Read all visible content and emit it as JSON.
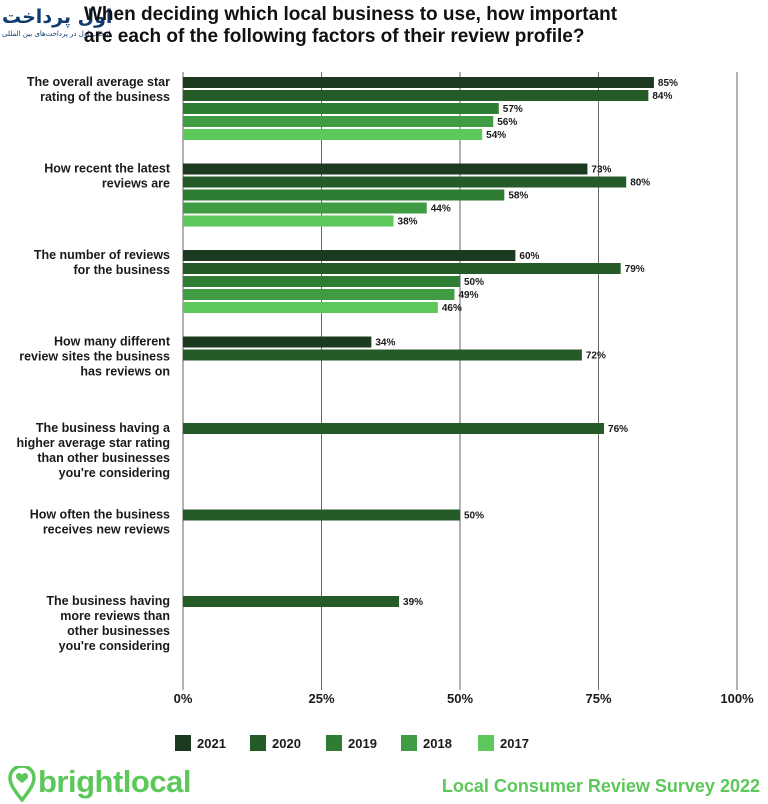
{
  "watermark": {
    "name": "اول پرداخت",
    "tagline": "انتخاب اول در پرداخت‌های بین المللی"
  },
  "title_lines": [
    "When deciding which local business to use, how important",
    "are each of the following factors of their review profile?"
  ],
  "colors": {
    "2021": "#1b3a1f",
    "2020": "#245b27",
    "2019": "#2f7d32",
    "2018": "#3f9c43",
    "2017": "#5cc85a",
    "grid": "#666666",
    "brand": "#5cc85a"
  },
  "footer": {
    "brand": "brightlocal",
    "survey": "Local Consumer Review Survey 2022",
    "logo_icon": "heart-location-pin-icon"
  },
  "chart_data": {
    "type": "bar",
    "orientation": "horizontal",
    "xlim": [
      0,
      100
    ],
    "xticks": [
      "0%",
      "25%",
      "50%",
      "75%",
      "100%"
    ],
    "grid": true,
    "legend_position": "bottom",
    "series_names": [
      "2021",
      "2020",
      "2019",
      "2018",
      "2017"
    ],
    "groups": [
      {
        "label_lines": [
          "The overall average star",
          "rating of the business"
        ],
        "bars": [
          {
            "series": "2021",
            "value": 85,
            "label": "85%"
          },
          {
            "series": "2020",
            "value": 84,
            "label": "84%"
          },
          {
            "series": "2019",
            "value": 57,
            "label": "57%"
          },
          {
            "series": "2018",
            "value": 56,
            "label": "56%"
          },
          {
            "series": "2017",
            "value": 54,
            "label": "54%"
          }
        ]
      },
      {
        "label_lines": [
          "How recent the latest",
          "reviews are"
        ],
        "bars": [
          {
            "series": "2021",
            "value": 73,
            "label": "73%"
          },
          {
            "series": "2020",
            "value": 80,
            "label": "80%"
          },
          {
            "series": "2019",
            "value": 58,
            "label": "58%"
          },
          {
            "series": "2018",
            "value": 44,
            "label": "44%"
          },
          {
            "series": "2017",
            "value": 38,
            "label": "38%"
          }
        ]
      },
      {
        "label_lines": [
          "The number of reviews",
          "for the business"
        ],
        "bars": [
          {
            "series": "2021",
            "value": 60,
            "label": "60%"
          },
          {
            "series": "2020",
            "value": 79,
            "label": "79%"
          },
          {
            "series": "2019",
            "value": 50,
            "label": "50%"
          },
          {
            "series": "2018",
            "value": 49,
            "label": "49%"
          },
          {
            "series": "2017",
            "value": 46,
            "label": "46%"
          }
        ]
      },
      {
        "label_lines": [
          "How many different",
          "review sites the business",
          "has reviews on"
        ],
        "bars": [
          {
            "series": "2021",
            "value": 34,
            "label": "34%"
          },
          {
            "series": "2020",
            "value": 72,
            "label": "72%"
          }
        ]
      },
      {
        "label_lines": [
          "The business having a",
          "higher average star rating",
          "than other businesses",
          "you're considering"
        ],
        "bars": [
          {
            "series": "2020",
            "value": 76,
            "label": "76%"
          }
        ]
      },
      {
        "label_lines": [
          "How often the business",
          "receives new reviews"
        ],
        "bars": [
          {
            "series": "2020",
            "value": 50,
            "label": "50%"
          }
        ]
      },
      {
        "label_lines": [
          "The business having",
          "more reviews than",
          "other businesses",
          "you're considering"
        ],
        "bars": [
          {
            "series": "2020",
            "value": 39,
            "label": "39%"
          }
        ]
      }
    ]
  }
}
